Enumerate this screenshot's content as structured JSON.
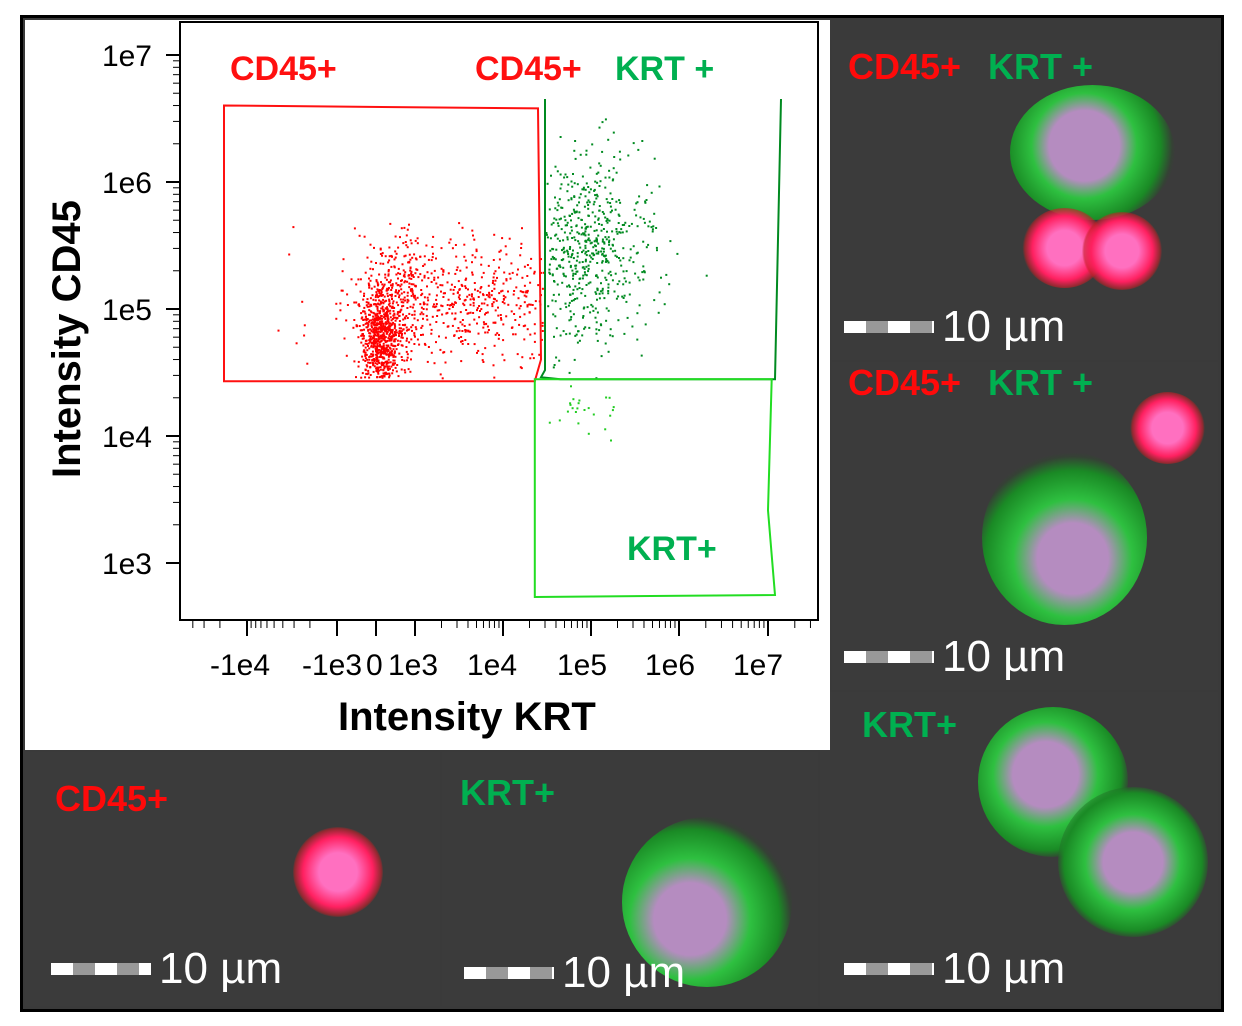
{
  "chart_data": {
    "type": "scatter",
    "title": "",
    "xlabel": "Intensity KRT",
    "ylabel": "Intensity CD45",
    "xscale": "biexponential",
    "yscale": "log",
    "xticks": [
      -10000,
      -1000,
      0,
      1000,
      10000,
      100000,
      1000000,
      10000000
    ],
    "xtick_labels": [
      "-1e4",
      "-1e3",
      "0",
      "1e3",
      "1e4",
      "1e5",
      "1e6",
      "1e7"
    ],
    "yticks": [
      1000,
      10000,
      100000,
      1000000,
      10000000
    ],
    "ytick_labels": [
      "1e3",
      "1e4",
      "1e5",
      "1e6",
      "1e7"
    ],
    "ylim": [
      200,
      15000000
    ],
    "gates": [
      {
        "name": "CD45+",
        "label": "CD45+",
        "color": "#ff1010",
        "vertices": [
          [
            -18000,
            4000000
          ],
          [
            25000,
            3800000
          ],
          [
            27000,
            40000
          ],
          [
            23000,
            27000
          ],
          [
            -18000,
            27000
          ]
        ]
      },
      {
        "name": "CD45+ KRT+",
        "label": "CD45+",
        "label2": "KRT +",
        "color": "#008a20",
        "vertices": [
          [
            30000,
            4500000
          ],
          [
            30000,
            33000
          ],
          [
            27000,
            29000
          ],
          [
            45000,
            28000
          ],
          [
            12000000,
            28000
          ],
          [
            14000000,
            4500000
          ]
        ]
      },
      {
        "name": "KRT+",
        "label": "KRT+",
        "color": "#22dd22",
        "vertices": [
          [
            23000,
            28000
          ],
          [
            23000,
            540
          ],
          [
            12000000,
            560
          ],
          [
            10000000,
            2600
          ],
          [
            11000000,
            28000
          ]
        ]
      }
    ],
    "series": [
      {
        "name": "CD45+",
        "color": "#ff0000",
        "clusters": [
          {
            "x_center": 80,
            "y_center": 60000,
            "x_spread_t": 0.25,
            "y_spread_log": 0.2,
            "count": 700
          },
          {
            "x_center": 2000,
            "y_center": 120000,
            "x_spread_t": 1.0,
            "y_spread_log": 0.25,
            "count": 900
          }
        ]
      },
      {
        "name": "CD45+ KRT+",
        "color": "#008a20",
        "clusters": [
          {
            "x_center": 90000,
            "y_center": 300000,
            "x_spread_t": 0.38,
            "y_spread_log": 0.35,
            "count": 650
          }
        ]
      },
      {
        "name": "KRT+",
        "color": "#22cc22",
        "clusters": [
          {
            "x_center": 80000,
            "y_center": 15000,
            "x_spread_t": 0.25,
            "y_spread_log": 0.15,
            "count": 30
          }
        ]
      }
    ]
  },
  "images": [
    {
      "label1": "CD45+",
      "label2": "KRT +",
      "scale": "10 µm"
    },
    {
      "label1": "CD45+",
      "label2": "KRT +",
      "scale": "10 µm"
    },
    {
      "label1": "KRT+",
      "scale": "10 µm"
    },
    {
      "label1": "CD45+",
      "scale": "10 µm"
    },
    {
      "label1": "KRT+",
      "scale": "10 µm"
    }
  ]
}
